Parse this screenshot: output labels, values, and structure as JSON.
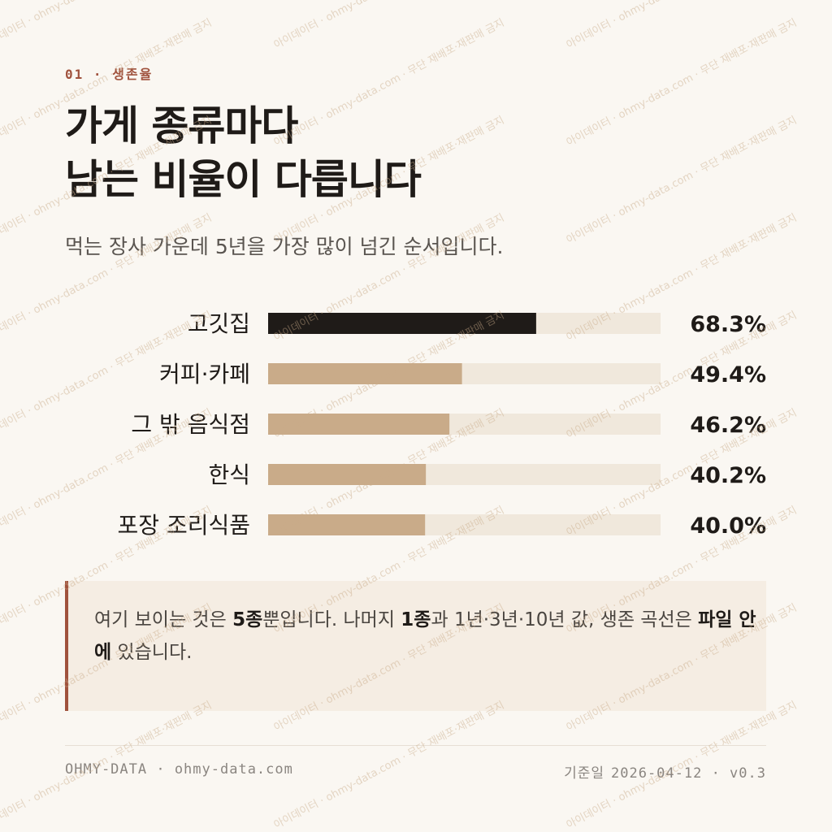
{
  "eyebrow": "01 · 생존율",
  "title_lines": [
    "가게 종류마다",
    "남는 비율이 다릅니다"
  ],
  "subtitle": "먹는 장사 가운데 5년을 가장 많이 넘긴 순서입니다.",
  "chart_data": {
    "type": "hbar",
    "categories": [
      "고깃집",
      "커피·카페",
      "그 밖 음식점",
      "한식",
      "포장 조리식품"
    ],
    "values": [
      68.3,
      49.4,
      46.2,
      40.2,
      40.0
    ],
    "value_labels": [
      "68.3%",
      "49.4%",
      "46.2%",
      "40.2%",
      "40.0%"
    ],
    "colors": [
      "#1f1b18",
      "#c9ab89",
      "#c9ab89",
      "#c9ab89",
      "#c9ab89"
    ],
    "track_color": "#f0e8dc",
    "xlim": [
      0,
      100
    ]
  },
  "note": [
    {
      "text": "여기 보이는 것은 "
    },
    {
      "text": "5종",
      "bold": true
    },
    {
      "text": "뿐입니다. 나머지 "
    },
    {
      "text": "1종",
      "bold": true
    },
    {
      "text": "과 1년·3년·10년 값, 생존 곡선은 "
    },
    {
      "text": "파일 안에",
      "bold": true
    },
    {
      "text": " 있습니다."
    }
  ],
  "footer": {
    "brand": "OHMY-DATA · ohmy-data.com",
    "date_label": "기준일",
    "date": "2026-04-12 · v0.3"
  },
  "watermark": "아이데이터 · ohmy-data.com · 무단 재배포·재판매 금지"
}
